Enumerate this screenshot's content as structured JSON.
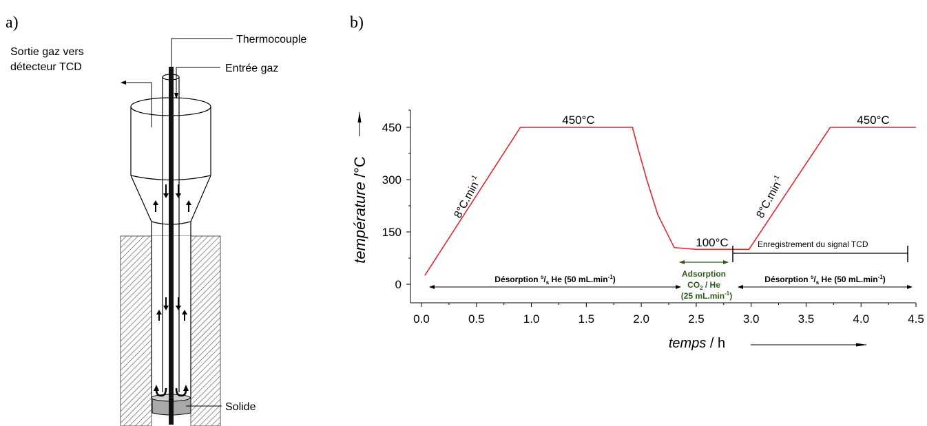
{
  "panel_a": {
    "label": "a)",
    "labels": {
      "thermocouple": "Thermocouple",
      "gas_inlet": "Entrée gaz",
      "gas_outlet_line1": "Sortie gaz vers",
      "gas_outlet_line2": "détecteur TCD",
      "solid": "Solide"
    }
  },
  "panel_b": {
    "label": "b)",
    "chart_data": {
      "type": "line",
      "xlabel_italic": "temps",
      "xlabel_unit": " / h",
      "ylabel_italic": "température",
      "ylabel_unit": " /°C",
      "xlim": [
        -0.1,
        4.5
      ],
      "ylim": [
        -50,
        500
      ],
      "x_ticks": [
        "0.0",
        "0.5",
        "1.0",
        "1.5",
        "2.0",
        "2.5",
        "3.0",
        "3.5",
        "4.0",
        "4.5"
      ],
      "x_tick_values": [
        0,
        0.5,
        1.0,
        1.5,
        2.0,
        2.5,
        3.0,
        3.5,
        4.0,
        4.5
      ],
      "y_ticks": [
        "0",
        "150",
        "300",
        "450"
      ],
      "y_tick_values": [
        0,
        150,
        300,
        450
      ],
      "series": [
        {
          "color": "#e8242b",
          "x": [
            0.03,
            0.9,
            1.92,
            1.97,
            2.05,
            2.15,
            2.3,
            2.5,
            2.84,
            2.98,
            3.72,
            4.5
          ],
          "y": [
            25,
            450,
            450,
            390,
            300,
            200,
            105,
            100,
            100,
            100,
            450,
            450
          ]
        }
      ],
      "annotations": {
        "plateau1": "450°C",
        "plateau2": "450°C",
        "adsorption_temp": "100°C",
        "ramp1": "8°C.min",
        "ramp2": "8°C.min",
        "ramp_exp": "-1",
        "tcd_recording": "Enregistrement du signal TCD",
        "desorption1_a": "Désorption ",
        "desorption1_sup": "s",
        "desorption1_sub": "s",
        "desorption1_b": " He (50 mL.min",
        "desorption1_exp": "-1",
        "desorption1_c": ")",
        "desorption2_a": "Désorption ",
        "desorption2_sup": "s",
        "desorption2_sub": "s",
        "desorption2_b": " He (50 mL.min",
        "desorption2_exp": "-1",
        "desorption2_c": ")",
        "adsorption_line1": "Adsorption",
        "adsorption_line2_a": "CO",
        "adsorption_line2_sub": "2",
        "adsorption_line2_b": " / He",
        "adsorption_line3_a": "(25 mL.min",
        "adsorption_line3_exp": "-1",
        "adsorption_line3_b": ")"
      },
      "adsorption_color": "#2e5a1c"
    }
  }
}
